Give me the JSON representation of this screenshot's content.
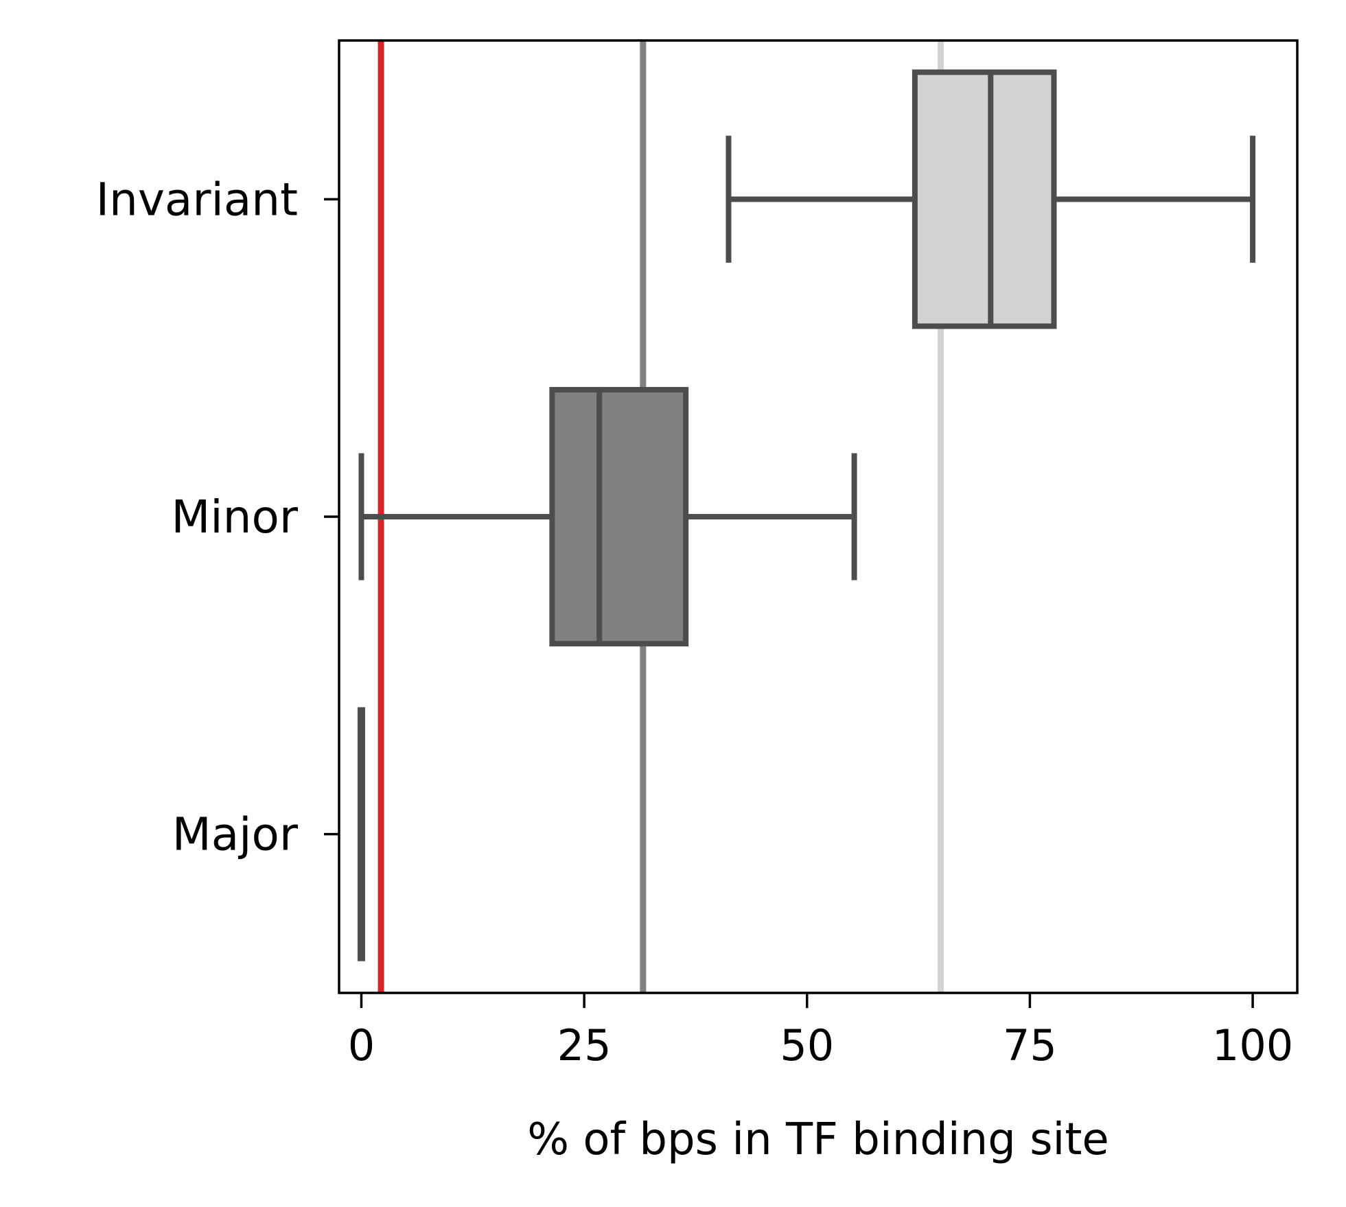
{
  "chart_data": {
    "type": "box",
    "orientation": "horizontal",
    "xlabel": "% of bps in TF binding site",
    "ylabel": "",
    "xlim": [
      -2.5,
      105
    ],
    "xticks": [
      0,
      25,
      50,
      75,
      100
    ],
    "categories": [
      "Invariant",
      "Minor",
      "Major"
    ],
    "boxes": [
      {
        "category": "Invariant",
        "whisker_low": 41.2,
        "q1": 62.1,
        "median": 70.6,
        "q3": 77.7,
        "whisker_high": 100,
        "fill": "#d3d3d3"
      },
      {
        "category": "Minor",
        "whisker_low": 0,
        "q1": 21.4,
        "median": 26.7,
        "q3": 36.4,
        "whisker_high": 55.3,
        "fill": "#808080"
      },
      {
        "category": "Major",
        "whisker_low": 0,
        "q1": 0,
        "median": 0,
        "q3": 0,
        "whisker_high": 0,
        "fill": "#404040"
      }
    ],
    "reference_lines": [
      {
        "x": 2.2,
        "color": "#d62728"
      },
      {
        "x": 31.6,
        "color": "#808080"
      },
      {
        "x": 65.0,
        "color": "#d3d3d3"
      }
    ],
    "box_edge_color": "#4d4d4d",
    "grid": false,
    "legend": "none"
  }
}
